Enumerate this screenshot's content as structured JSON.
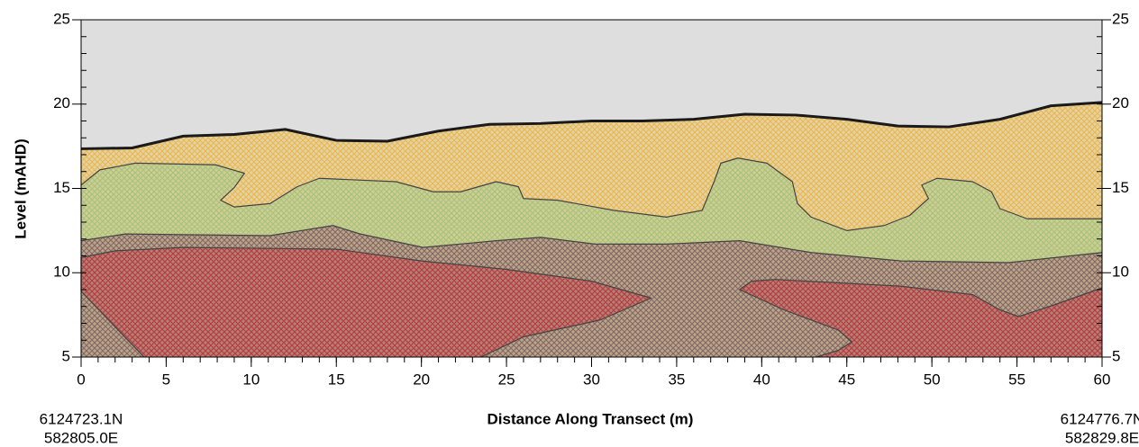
{
  "chart_data": {
    "type": "cross-section",
    "y_label": "Level (mAHD)",
    "x_label": "Distance Along Transect (m)",
    "start_coords": [
      "6124723.1N",
      "582805.0E"
    ],
    "end_coords": [
      "6124776.7N",
      "582829.8E"
    ],
    "xlim": [
      0,
      60
    ],
    "xticks": [
      0,
      5,
      10,
      15,
      20,
      25,
      30,
      35,
      40,
      45,
      50,
      55,
      60
    ],
    "xminorticks": [
      0,
      1,
      2,
      3,
      4,
      5,
      6,
      7,
      8,
      9,
      10,
      11,
      12,
      13,
      14,
      15,
      16,
      17,
      18,
      19,
      20,
      21,
      22,
      23,
      24,
      25,
      26,
      27,
      28,
      29,
      30,
      31,
      32,
      33,
      34,
      35,
      36,
      37,
      38,
      39,
      40,
      41,
      42,
      43,
      44,
      45,
      46,
      47,
      48,
      49,
      50,
      51,
      52,
      53,
      54,
      55,
      56,
      57,
      58,
      59,
      60
    ],
    "ylim": [
      5,
      25
    ],
    "yticks": [
      5,
      10,
      15,
      20,
      25
    ],
    "yminorticks": [
      5,
      6,
      7,
      8,
      9,
      10,
      11,
      12,
      13,
      14,
      15,
      16,
      17,
      18,
      19,
      20,
      21,
      22,
      23,
      24,
      25
    ],
    "y2lim": [
      5,
      25
    ],
    "y2ticks": [
      5,
      10,
      15,
      20,
      25
    ],
    "background_color": "#dedede",
    "series": [
      {
        "color": "#eab848",
        "line_color": "#1a1a1a",
        "line_width": 3,
        "x": [
          0,
          3,
          6,
          9,
          12,
          15,
          18,
          21,
          24,
          27,
          30,
          33,
          36,
          39,
          42,
          45,
          48,
          51,
          54,
          57,
          60
        ],
        "values": [
          17.35,
          17.4,
          18.1,
          18.2,
          18.5,
          17.85,
          17.8,
          18.4,
          18.8,
          18.85,
          19.0,
          19.0,
          19.1,
          19.4,
          19.35,
          19.1,
          18.7,
          18.65,
          19.1,
          19.9,
          20.1
        ]
      },
      {
        "color": "#a6c47a",
        "line_color": "#444444",
        "line_width": 1.2,
        "x": [
          0,
          1.1,
          3.2,
          7.9,
          9.6,
          9.0,
          8.2,
          9.0,
          11.1,
          12.7,
          14.0,
          18.5,
          20.7,
          22.3,
          24.4,
          25.7,
          26.0,
          28.0,
          31.3,
          34.4,
          36.5,
          37.2,
          37.6,
          38.6,
          40.3,
          41.8,
          42.1,
          42.9,
          45.0,
          47.2,
          48.7,
          49.8,
          49.4,
          50.3,
          52.4,
          53.5,
          54.0,
          55.6,
          60
        ],
        "values": [
          15.2,
          16.1,
          16.5,
          16.4,
          15.9,
          15.05,
          14.3,
          13.9,
          14.1,
          15.1,
          15.6,
          15.4,
          14.8,
          14.8,
          15.4,
          15.1,
          14.4,
          14.3,
          13.7,
          13.3,
          13.7,
          15.4,
          16.5,
          16.8,
          16.5,
          15.4,
          14.1,
          13.3,
          12.5,
          12.8,
          13.4,
          14.4,
          15.2,
          15.6,
          15.4,
          14.8,
          13.8,
          13.2,
          13.2
        ]
      },
      {
        "color": "#8a6468",
        "line_color": "#444444",
        "line_width": 1.2,
        "x": [
          0,
          2.6,
          11.1,
          14.8,
          16.4,
          20.1,
          24.4,
          27.0,
          30.2,
          34.4,
          38.7,
          42.9,
          48.2,
          54.5,
          60
        ],
        "values": [
          11.9,
          12.3,
          12.2,
          12.8,
          12.3,
          11.5,
          11.9,
          12.1,
          11.7,
          11.7,
          11.9,
          11.2,
          10.7,
          10.6,
          11.2
        ]
      },
      {
        "color": "#b83c46",
        "line_color": "#444444",
        "line_width": 1.2,
        "x": [
          3.7,
          0,
          0,
          2.0,
          6.0,
          15.0,
          20.0,
          25.0,
          30.0,
          33.5,
          30.5,
          26.0,
          23.5
        ],
        "values": [
          5,
          8.9,
          10.9,
          11.3,
          11.5,
          11.4,
          10.7,
          10.2,
          9.5,
          8.5,
          7.2,
          6.2,
          5
        ]
      },
      {
        "color": "#b83c46",
        "line_color": "#444444",
        "line_width": 1.2,
        "x": [
          43.2,
          44.5,
          45.3,
          44.5,
          41.3,
          38.7,
          39.4,
          40.8,
          48.2,
          52.4,
          54.0,
          55.1,
          57.2,
          60
        ],
        "values": [
          5,
          5.4,
          5.9,
          6.6,
          7.8,
          9.0,
          9.5,
          9.6,
          9.2,
          8.7,
          7.8,
          7.4,
          8.1,
          9.1
        ]
      }
    ]
  }
}
